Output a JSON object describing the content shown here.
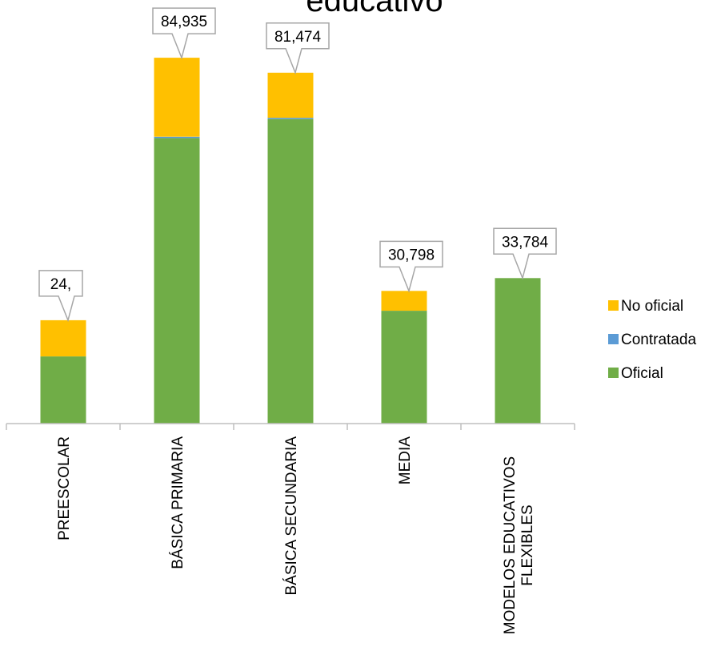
{
  "chart_data": {
    "type": "bar",
    "stacked": true,
    "title": "educativo",
    "categories": [
      [
        "PREESCOLAR"
      ],
      [
        "BÁSICA PRIMARIA"
      ],
      [
        "BÁSICA SECUNDARIA"
      ],
      [
        "MEDIA"
      ],
      [
        "MODELOS EDUCATIVOS",
        "FLEXIBLES"
      ]
    ],
    "series": [
      {
        "name": "Oficial",
        "color": "#70ad47",
        "values": [
          15600,
          66300,
          70700,
          26200,
          33784
        ]
      },
      {
        "name": "Contratada",
        "color": "#5b9bd5",
        "values": [
          0,
          300,
          300,
          0,
          0
        ]
      },
      {
        "name": "No oficial",
        "color": "#ffc000",
        "values": [
          8400,
          18335,
          10474,
          4598,
          0
        ]
      }
    ],
    "data_labels": [
      "24,",
      "84,935",
      "81,474",
      "30,798",
      "33,784"
    ],
    "legend": {
      "position": "right",
      "order": [
        "No oficial",
        "Contratada",
        "Oficial"
      ]
    },
    "ylim": [
      0,
      95000
    ],
    "grid": false
  }
}
